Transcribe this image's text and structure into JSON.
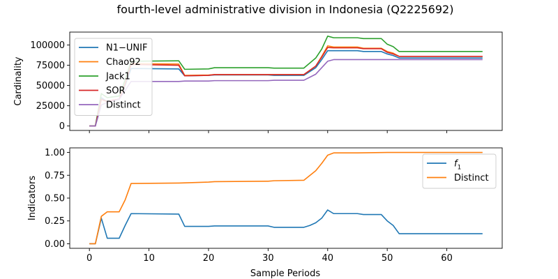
{
  "chart_data": {
    "title": "fourth-level administrative division in Indonesia (Q2225692)",
    "xlabel": "Sample Periods",
    "x_ticks": [
      0,
      10,
      20,
      30,
      40,
      50,
      60
    ],
    "xlim": [
      -3.3,
      69.3
    ],
    "panels": [
      {
        "type": "line",
        "ylabel": "Cardinality",
        "ylim": [
          -5500,
          116000
        ],
        "y_ticks": [
          0,
          25000,
          50000,
          75000,
          100000
        ],
        "legend_position": "upper-left",
        "series": [
          {
            "name": "N1−UNIF",
            "color": "#1f77b4",
            "points": [
              [
                0,
                0
              ],
              [
                1,
                0
              ],
              [
                2,
                35000
              ],
              [
                3,
                30000
              ],
              [
                4,
                32000
              ],
              [
                5,
                33000
              ],
              [
                6,
                50000
              ],
              [
                7,
                71000
              ],
              [
                15,
                70500
              ],
              [
                16,
                62000
              ],
              [
                20,
                62500
              ],
              [
                21,
                63000
              ],
              [
                30,
                63000
              ],
              [
                31,
                62500
              ],
              [
                36,
                62500
              ],
              [
                38,
                72000
              ],
              [
                39,
                82000
              ],
              [
                40,
                93000
              ],
              [
                41,
                93000
              ],
              [
                45,
                93000
              ],
              [
                46,
                92000
              ],
              [
                49,
                92000
              ],
              [
                50,
                89000
              ],
              [
                51,
                87000
              ],
              [
                52,
                84000
              ],
              [
                66,
                84000
              ]
            ]
          },
          {
            "name": "Chao92",
            "color": "#ff7f0e",
            "points": [
              [
                0,
                0
              ],
              [
                1,
                0
              ],
              [
                2,
                33000
              ],
              [
                3,
                30000
              ],
              [
                4,
                32000
              ],
              [
                5,
                33000
              ],
              [
                6,
                52000
              ],
              [
                7,
                77000
              ],
              [
                15,
                76500
              ],
              [
                16,
                62500
              ],
              [
                20,
                63000
              ],
              [
                21,
                63500
              ],
              [
                30,
                63500
              ],
              [
                36,
                63500
              ],
              [
                38,
                74000
              ],
              [
                39,
                86000
              ],
              [
                40,
                99000
              ],
              [
                41,
                97500
              ],
              [
                45,
                97500
              ],
              [
                46,
                96000
              ],
              [
                49,
                96000
              ],
              [
                50,
                92000
              ],
              [
                51,
                90000
              ],
              [
                52,
                86000
              ],
              [
                66,
                86000
              ]
            ]
          },
          {
            "name": "Jack1",
            "color": "#2ca02c",
            "points": [
              [
                0,
                0
              ],
              [
                1,
                0
              ],
              [
                2,
                40000
              ],
              [
                3,
                35000
              ],
              [
                4,
                36000
              ],
              [
                5,
                37000
              ],
              [
                6,
                57000
              ],
              [
                7,
                80000
              ],
              [
                15,
                80500
              ],
              [
                16,
                70000
              ],
              [
                20,
                70500
              ],
              [
                21,
                72000
              ],
              [
                30,
                72000
              ],
              [
                31,
                71500
              ],
              [
                36,
                71500
              ],
              [
                38,
                84000
              ],
              [
                39,
                95000
              ],
              [
                40,
                111000
              ],
              [
                41,
                109000
              ],
              [
                45,
                109000
              ],
              [
                46,
                108000
              ],
              [
                49,
                108000
              ],
              [
                50,
                101000
              ],
              [
                51,
                98000
              ],
              [
                52,
                92000
              ],
              [
                66,
                92000
              ]
            ]
          },
          {
            "name": "SOR",
            "color": "#d62728",
            "points": [
              [
                0,
                0
              ],
              [
                1,
                0
              ],
              [
                2,
                33000
              ],
              [
                3,
                30000
              ],
              [
                4,
                32000
              ],
              [
                5,
                33000
              ],
              [
                6,
                52000
              ],
              [
                7,
                76000
              ],
              [
                15,
                75000
              ],
              [
                16,
                62000
              ],
              [
                20,
                62500
              ],
              [
                21,
                63500
              ],
              [
                30,
                63500
              ],
              [
                36,
                63500
              ],
              [
                38,
                74000
              ],
              [
                39,
                85000
              ],
              [
                40,
                97000
              ],
              [
                41,
                96500
              ],
              [
                45,
                96500
              ],
              [
                46,
                95500
              ],
              [
                49,
                95500
              ],
              [
                50,
                91000
              ],
              [
                51,
                89000
              ],
              [
                52,
                86000
              ],
              [
                66,
                86000
              ]
            ]
          },
          {
            "name": "Distinct",
            "color": "#9467bd",
            "points": [
              [
                0,
                0
              ],
              [
                1,
                0
              ],
              [
                2,
                26000
              ],
              [
                3,
                29000
              ],
              [
                4,
                31000
              ],
              [
                5,
                33000
              ],
              [
                6,
                44000
              ],
              [
                7,
                55000
              ],
              [
                15,
                55000
              ],
              [
                16,
                55500
              ],
              [
                20,
                55500
              ],
              [
                21,
                56000
              ],
              [
                30,
                56000
              ],
              [
                31,
                56500
              ],
              [
                36,
                56500
              ],
              [
                38,
                64000
              ],
              [
                39,
                72000
              ],
              [
                40,
                80000
              ],
              [
                41,
                82000
              ],
              [
                66,
                82000
              ]
            ]
          }
        ]
      },
      {
        "type": "line",
        "ylabel": "Indicators",
        "ylim": [
          -0.05,
          1.05
        ],
        "y_ticks": [
          0.0,
          0.25,
          0.5,
          0.75,
          1.0
        ],
        "y_tick_labels": [
          "0.00",
          "0.25",
          "0.50",
          "0.75",
          "1.00"
        ],
        "legend_position": "upper-right",
        "series": [
          {
            "name": "f1",
            "color": "#1f77b4",
            "points": [
              [
                0,
                0
              ],
              [
                1,
                0
              ],
              [
                2,
                0.28
              ],
              [
                3,
                0.06
              ],
              [
                4,
                0.06
              ],
              [
                5,
                0.06
              ],
              [
                6,
                0.2
              ],
              [
                7,
                0.33
              ],
              [
                15,
                0.325
              ],
              [
                16,
                0.19
              ],
              [
                20,
                0.19
              ],
              [
                21,
                0.195
              ],
              [
                30,
                0.195
              ],
              [
                31,
                0.18
              ],
              [
                36,
                0.18
              ],
              [
                37,
                0.2
              ],
              [
                38,
                0.23
              ],
              [
                39,
                0.28
              ],
              [
                40,
                0.37
              ],
              [
                41,
                0.33
              ],
              [
                45,
                0.33
              ],
              [
                46,
                0.32
              ],
              [
                49,
                0.32
              ],
              [
                50,
                0.25
              ],
              [
                51,
                0.2
              ],
              [
                52,
                0.11
              ],
              [
                66,
                0.11
              ]
            ]
          },
          {
            "name": "Distinct",
            "color": "#ff7f0e",
            "points": [
              [
                0,
                0
              ],
              [
                1,
                0
              ],
              [
                2,
                0.3
              ],
              [
                3,
                0.35
              ],
              [
                4,
                0.35
              ],
              [
                5,
                0.35
              ],
              [
                6,
                0.48
              ],
              [
                7,
                0.66
              ],
              [
                15,
                0.665
              ],
              [
                20,
                0.675
              ],
              [
                21,
                0.68
              ],
              [
                30,
                0.685
              ],
              [
                31,
                0.69
              ],
              [
                36,
                0.695
              ],
              [
                38,
                0.8
              ],
              [
                39,
                0.88
              ],
              [
                40,
                0.97
              ],
              [
                41,
                0.995
              ],
              [
                45,
                0.995
              ],
              [
                50,
                1.0
              ],
              [
                52,
                1.0
              ],
              [
                66,
                1.0
              ]
            ]
          }
        ]
      }
    ]
  }
}
